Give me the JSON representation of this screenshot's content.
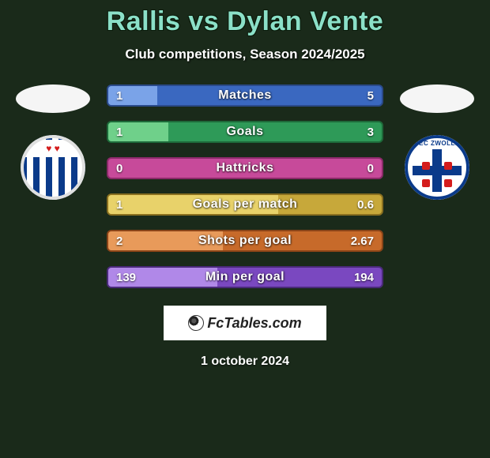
{
  "title_color": "#8be0c8",
  "background_color": "#1a2a1a",
  "text_color": "#ffffff",
  "title": "Rallis vs Dylan Vente",
  "subtitle": "Club competitions, Season 2024/2025",
  "date": "1 october 2024",
  "brand": "FcTables.com",
  "left_player": {
    "club_hint": "SC Heerenveen",
    "badge_colors": {
      "primary": "#0a3a8a",
      "secondary": "#ffffff",
      "accent": "#d41c1c"
    }
  },
  "right_player": {
    "club_hint": "PEC Zwolle",
    "badge_colors": {
      "primary": "#0a3a8a",
      "secondary": "#ffffff",
      "accent": "#d41c1c"
    }
  },
  "bar_style": {
    "height": 28,
    "border_radius": 6,
    "font_size": 16,
    "font_weight": 800
  },
  "stats": [
    {
      "label": "Matches",
      "left_value": "1",
      "right_value": "5",
      "fill_pct": 18,
      "track_color": "#3a68c0",
      "fill_color": "#7aa3e8",
      "border_color": "#2a4a8a"
    },
    {
      "label": "Goals",
      "left_value": "1",
      "right_value": "3",
      "fill_pct": 22,
      "track_color": "#2e9a58",
      "fill_color": "#6fd08a",
      "border_color": "#1e6a3a"
    },
    {
      "label": "Hattricks",
      "left_value": "0",
      "right_value": "0",
      "fill_pct": 0,
      "track_color": "#c74a9a",
      "fill_color": "#e888c4",
      "border_color": "#8a2a68"
    },
    {
      "label": "Goals per match",
      "left_value": "1",
      "right_value": "0.6",
      "fill_pct": 62,
      "track_color": "#c7a83a",
      "fill_color": "#e8d26a",
      "border_color": "#8a7020"
    },
    {
      "label": "Shots per goal",
      "left_value": "2",
      "right_value": "2.67",
      "fill_pct": 42,
      "track_color": "#c76a2a",
      "fill_color": "#e89a5a",
      "border_color": "#8a4418"
    },
    {
      "label": "Min per goal",
      "left_value": "139",
      "right_value": "194",
      "fill_pct": 40,
      "track_color": "#7a48c0",
      "fill_color": "#b088e8",
      "border_color": "#4a2a7a"
    }
  ]
}
